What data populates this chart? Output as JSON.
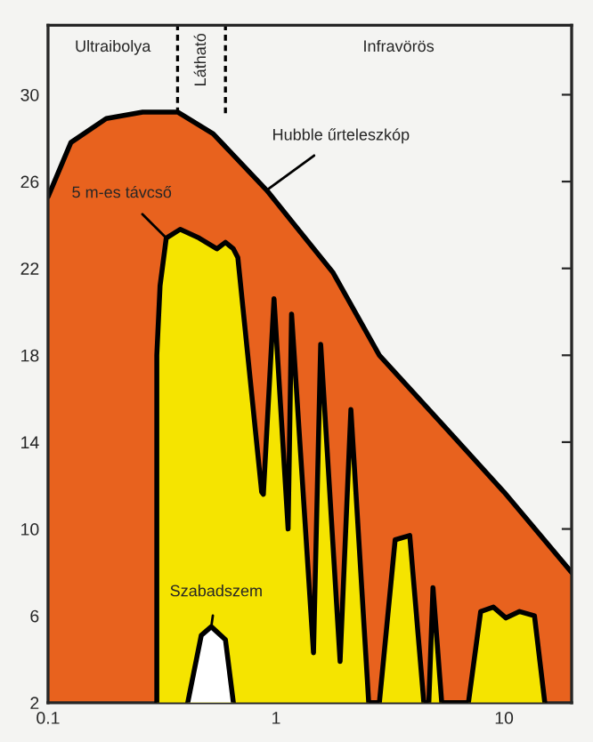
{
  "chart_data": {
    "type": "area",
    "log": "x",
    "xlim": [
      0.1,
      19.8
    ],
    "ylim": [
      2,
      33.2
    ],
    "xticks": [
      0.1,
      1,
      10
    ],
    "yticks": [
      2,
      6,
      10,
      14,
      18,
      22,
      26,
      30
    ],
    "grid": false,
    "legend": false,
    "series": [
      {
        "name": "Hubble űrteleszkóp",
        "color": "#e8621e",
        "x": [
          0.1,
          0.126,
          0.18,
          0.26,
          0.37,
          0.53,
          0.91,
          1.78,
          2.84,
          5.5,
          10,
          19.8
        ],
        "values": [
          25.3,
          27.8,
          28.9,
          29.2,
          29.2,
          28.2,
          25.6,
          21.8,
          18.0,
          14.7,
          11.7,
          8.0
        ]
      },
      {
        "name": "5 m-es távcső",
        "color": "#f5e400",
        "x": [
          0.3,
          0.3,
          0.31,
          0.33,
          0.38,
          0.46,
          0.55,
          0.6,
          0.65,
          0.68,
          0.865,
          0.88,
          0.98,
          1.13,
          1.17,
          1.46,
          1.57,
          1.91,
          2.13,
          2.55,
          2.84,
          3.33,
          3.86,
          4.45,
          4.68,
          4.88,
          5.33,
          6.98,
          7.9,
          8.98,
          10.2,
          11.7,
          13.6,
          15.1
        ],
        "values": [
          2,
          18,
          21.2,
          23.4,
          23.8,
          23.4,
          22.9,
          23.2,
          22.9,
          22.5,
          11.7,
          11.6,
          20.6,
          10.0,
          19.9,
          4.3,
          18.5,
          3.9,
          15.5,
          2,
          2,
          9.5,
          9.7,
          2,
          2,
          7.3,
          2,
          2,
          6.2,
          6.4,
          5.9,
          6.2,
          6.0,
          2
        ]
      },
      {
        "name": "Szabadszem",
        "color": "#ffffff",
        "x": [
          0.41,
          0.47,
          0.52,
          0.6,
          0.65
        ],
        "values": [
          2,
          5.1,
          5.5,
          4.9,
          2
        ]
      }
    ],
    "ref_lines": [
      {
        "axis": "x",
        "value": 0.37,
        "line_style": "dashed"
      },
      {
        "axis": "x",
        "value": 0.6,
        "line_style": "dashed"
      }
    ],
    "annotations": [
      "Ultraibolya",
      "Látható",
      "Infravörös"
    ]
  }
}
